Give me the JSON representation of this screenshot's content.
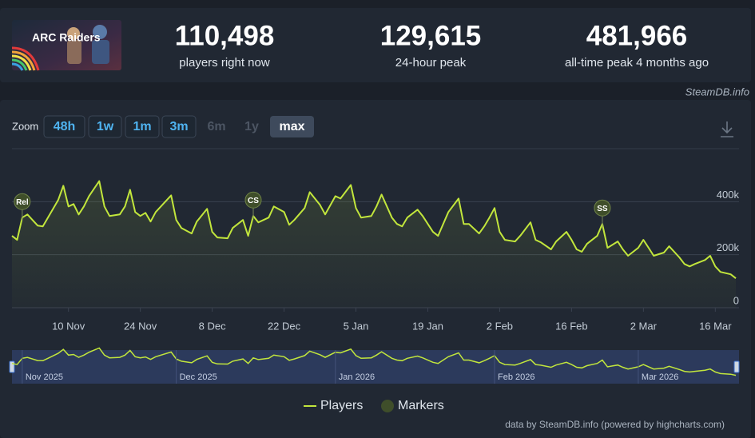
{
  "header": {
    "logo": "ARC Raiders",
    "stats": [
      {
        "value": "110,498",
        "label": "players right now"
      },
      {
        "value": "129,615",
        "label": "24-hour peak"
      },
      {
        "value": "481,966",
        "label": "all-time peak 4 months ago"
      }
    ],
    "source": "SteamDB.info"
  },
  "zoom": {
    "label": "Zoom",
    "buttons": [
      "48h",
      "1w",
      "1m",
      "3m",
      "6m",
      "1y",
      "max"
    ]
  },
  "chart_data": {
    "type": "line",
    "x": [
      "2025-10-30",
      "2025-10-31",
      "2025-11-01",
      "2025-11-02",
      "2025-11-04",
      "2025-11-05",
      "2025-11-06",
      "2025-11-08",
      "2025-11-09",
      "2025-11-10",
      "2025-11-11",
      "2025-11-12",
      "2025-11-13",
      "2025-11-14",
      "2025-11-16",
      "2025-11-17",
      "2025-11-18",
      "2025-11-20",
      "2025-11-21",
      "2025-11-22",
      "2025-11-23",
      "2025-11-24",
      "2025-11-25",
      "2025-11-26",
      "2025-11-27",
      "2025-11-30",
      "2025-12-01",
      "2025-12-02",
      "2025-12-04",
      "2025-12-05",
      "2025-12-07",
      "2025-12-08",
      "2025-12-09",
      "2025-12-11",
      "2025-12-12",
      "2025-12-14",
      "2025-12-15",
      "2025-12-16",
      "2025-12-17",
      "2025-12-19",
      "2025-12-20",
      "2025-12-22",
      "2025-12-23",
      "2025-12-24",
      "2025-12-26",
      "2025-12-27",
      "2025-12-29",
      "2025-12-30",
      "2026-01-01",
      "2026-01-02",
      "2026-01-04",
      "2026-01-05",
      "2026-01-06",
      "2026-01-08",
      "2026-01-09",
      "2026-01-10",
      "2026-01-12",
      "2026-01-13",
      "2026-01-14",
      "2026-01-15",
      "2026-01-17",
      "2026-01-18",
      "2026-01-20",
      "2026-01-21",
      "2026-01-23",
      "2026-01-25",
      "2026-01-26",
      "2026-01-27",
      "2026-01-29",
      "2026-01-30",
      "2026-01-31",
      "2026-02-01",
      "2026-02-02",
      "2026-02-03",
      "2026-02-05",
      "2026-02-06",
      "2026-02-08",
      "2026-02-09",
      "2026-02-10",
      "2026-02-12",
      "2026-02-13",
      "2026-02-15",
      "2026-02-16",
      "2026-02-17",
      "2026-02-18",
      "2026-02-19",
      "2026-02-21",
      "2026-02-22",
      "2026-02-23",
      "2026-02-25",
      "2026-02-26",
      "2026-02-27",
      "2026-03-01",
      "2026-03-02",
      "2026-03-03",
      "2026-03-04",
      "2026-03-06",
      "2026-03-07",
      "2026-03-09",
      "2026-03-10",
      "2026-03-11",
      "2026-03-12",
      "2026-03-14",
      "2026-03-15",
      "2026-03-16",
      "2026-03-17",
      "2026-03-19",
      "2026-03-20"
    ],
    "series": [
      {
        "name": "Players",
        "color": "#c2e63c",
        "values": [
          271000,
          256000,
          340000,
          352000,
          310000,
          307000,
          340000,
          406000,
          460000,
          382000,
          391000,
          352000,
          382000,
          421000,
          478000,
          382000,
          346000,
          352000,
          382000,
          445000,
          361000,
          346000,
          358000,
          325000,
          361000,
          424000,
          331000,
          301000,
          280000,
          325000,
          373000,
          286000,
          265000,
          262000,
          301000,
          331000,
          271000,
          346000,
          322000,
          340000,
          382000,
          361000,
          313000,
          331000,
          376000,
          436000,
          388000,
          352000,
          421000,
          412000,
          463000,
          376000,
          340000,
          346000,
          382000,
          427000,
          340000,
          316000,
          307000,
          340000,
          370000,
          346000,
          286000,
          271000,
          361000,
          412000,
          316000,
          316000,
          280000,
          307000,
          340000,
          376000,
          286000,
          256000,
          250000,
          271000,
          322000,
          256000,
          247000,
          220000,
          250000,
          286000,
          256000,
          220000,
          211000,
          241000,
          271000,
          316000,
          226000,
          250000,
          220000,
          196000,
          226000,
          256000,
          226000,
          196000,
          208000,
          232000,
          190000,
          165000,
          156000,
          165000,
          180000,
          196000,
          156000,
          135000,
          126000,
          111000
        ]
      }
    ],
    "xlim": [
      "2025-10-30",
      "2026-03-20"
    ],
    "xticks": [
      {
        "value": "2025-11-10",
        "label": "10 Nov"
      },
      {
        "value": "2025-11-24",
        "label": "24 Nov"
      },
      {
        "value": "2025-12-08",
        "label": "8 Dec"
      },
      {
        "value": "2025-12-22",
        "label": "22 Dec"
      },
      {
        "value": "2026-01-05",
        "label": "5 Jan"
      },
      {
        "value": "2026-01-19",
        "label": "19 Jan"
      },
      {
        "value": "2026-02-02",
        "label": "2 Feb"
      },
      {
        "value": "2026-02-16",
        "label": "16 Feb"
      },
      {
        "value": "2026-03-02",
        "label": "2 Mar"
      },
      {
        "value": "2026-03-16",
        "label": "16 Mar"
      }
    ],
    "ylim": [
      0,
      600000
    ],
    "yticks": [
      0,
      {
        "value": 200000,
        "label": "200k"
      },
      {
        "value": 400000,
        "label": "400k"
      }
    ],
    "grid": true,
    "markers": {
      "name": "Markers",
      "color": "#3f4e2a",
      "items": [
        {
          "label": "Rel",
          "x": "2025-11-01"
        },
        {
          "label": "CS",
          "x": "2025-12-16"
        },
        {
          "label": "SS",
          "x": "2026-02-22"
        }
      ]
    },
    "navigator_ticks": [
      {
        "value": "2025-11-01",
        "label": "Nov 2025"
      },
      {
        "value": "2025-12-01",
        "label": "Dec 2025"
      },
      {
        "value": "2026-01-01",
        "label": "Jan 2026"
      },
      {
        "value": "2026-02-01",
        "label": "Feb 2026"
      },
      {
        "value": "2026-03-01",
        "label": "Mar 2026"
      }
    ],
    "legend": "bottom"
  },
  "credits": "data by SteamDB.info (powered by highcharts.com)"
}
